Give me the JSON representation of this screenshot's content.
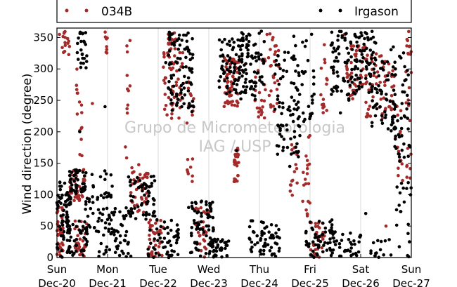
{
  "chart_data": {
    "type": "scatter",
    "title": "",
    "xlabel": "",
    "ylabel": "Wind direction (degree)",
    "ylim": [
      0,
      365
    ],
    "yticks": [
      0,
      50,
      100,
      150,
      200,
      250,
      300,
      350
    ],
    "xlim": [
      "2015-12-20",
      "2015-12-27"
    ],
    "xtick_days": [
      {
        "day": "Sun",
        "date": "Dec-20"
      },
      {
        "day": "Mon",
        "date": "Dec-21"
      },
      {
        "day": "Tue",
        "date": "Dec-22"
      },
      {
        "day": "Wed",
        "date": "Dec-23"
      },
      {
        "day": "Thu",
        "date": "Dec-24"
      },
      {
        "day": "Fri",
        "date": "Dec-25"
      },
      {
        "day": "Sat",
        "date": "Dec-26"
      },
      {
        "day": "Sun",
        "date": "Dec-27"
      }
    ],
    "grid": "vertical",
    "legend_position": "top",
    "watermark": [
      "Grupo de Micrometeorologia",
      "IAG / USP"
    ],
    "series": [
      {
        "name": "034B",
        "color": "#a52a2a",
        "clusters": [
          [
            0.0,
            0.12,
            0,
            80,
            40
          ],
          [
            0.1,
            0.25,
            320,
            360,
            15
          ],
          [
            0.25,
            0.55,
            90,
            140,
            45
          ],
          [
            0.35,
            0.6,
            0,
            60,
            30
          ],
          [
            0.38,
            0.5,
            150,
            320,
            15
          ],
          [
            0.95,
            1.0,
            320,
            360,
            8
          ],
          [
            1.35,
            1.45,
            150,
            350,
            12
          ],
          [
            1.45,
            1.8,
            70,
            150,
            45
          ],
          [
            1.8,
            2.1,
            0,
            60,
            35
          ],
          [
            2.1,
            2.5,
            220,
            330,
            55
          ],
          [
            2.2,
            2.35,
            330,
            360,
            20
          ],
          [
            2.55,
            2.7,
            100,
            300,
            20
          ],
          [
            2.7,
            3.0,
            0,
            80,
            30
          ],
          [
            3.3,
            3.6,
            240,
            320,
            60
          ],
          [
            3.5,
            3.6,
            120,
            180,
            25
          ],
          [
            3.9,
            4.4,
            220,
            320,
            40
          ],
          [
            4.2,
            4.4,
            320,
            360,
            10
          ],
          [
            4.6,
            4.75,
            30,
            180,
            15
          ],
          [
            4.85,
            5.0,
            60,
            200,
            20
          ],
          [
            5.0,
            5.3,
            0,
            60,
            30
          ],
          [
            5.2,
            5.35,
            230,
            350,
            15
          ],
          [
            5.7,
            6.1,
            250,
            340,
            45
          ],
          [
            6.1,
            6.6,
            220,
            330,
            50
          ],
          [
            6.6,
            7.0,
            120,
            300,
            40
          ],
          [
            6.9,
            7.0,
            320,
            360,
            10
          ]
        ],
        "points": [
          [
            0.05,
            355
          ],
          [
            0.7,
            245
          ],
          [
            4.15,
            355
          ],
          [
            5.68,
            355
          ],
          [
            6.5,
            50
          ]
        ]
      },
      {
        "name": "Irgason",
        "color": "#000000",
        "clusters": [
          [
            0.0,
            0.3,
            0,
            120,
            70
          ],
          [
            0.25,
            0.6,
            100,
            140,
            40
          ],
          [
            0.2,
            0.6,
            0,
            60,
            50
          ],
          [
            0.4,
            0.6,
            300,
            360,
            25
          ],
          [
            0.55,
            1.1,
            40,
            140,
            50
          ],
          [
            0.8,
            1.5,
            0,
            80,
            60
          ],
          [
            1.4,
            2.0,
            60,
            130,
            60
          ],
          [
            1.8,
            2.4,
            0,
            60,
            50
          ],
          [
            2.2,
            2.7,
            230,
            360,
            90
          ],
          [
            2.6,
            3.1,
            0,
            90,
            70
          ],
          [
            3.0,
            3.4,
            0,
            30,
            40
          ],
          [
            3.2,
            3.8,
            260,
            350,
            90
          ],
          [
            3.6,
            4.1,
            250,
            360,
            60
          ],
          [
            3.8,
            4.4,
            0,
            60,
            60
          ],
          [
            4.3,
            4.8,
            160,
            330,
            70
          ],
          [
            4.6,
            5.1,
            200,
            360,
            40
          ],
          [
            4.9,
            5.5,
            0,
            60,
            60
          ],
          [
            5.4,
            5.9,
            250,
            360,
            70
          ],
          [
            5.5,
            6.0,
            0,
            40,
            30
          ],
          [
            5.9,
            6.3,
            260,
            360,
            60
          ],
          [
            6.2,
            6.7,
            200,
            320,
            60
          ],
          [
            6.6,
            7.0,
            150,
            340,
            50
          ],
          [
            6.2,
            6.6,
            0,
            40,
            15
          ],
          [
            6.7,
            7.0,
            0,
            120,
            20
          ]
        ],
        "points": [
          [
            0.45,
            200
          ],
          [
            0.95,
            240
          ],
          [
            2.15,
            310
          ],
          [
            3.55,
            170
          ],
          [
            4.6,
            145
          ],
          [
            5.6,
            230
          ],
          [
            6.1,
            70
          ]
        ]
      }
    ]
  }
}
